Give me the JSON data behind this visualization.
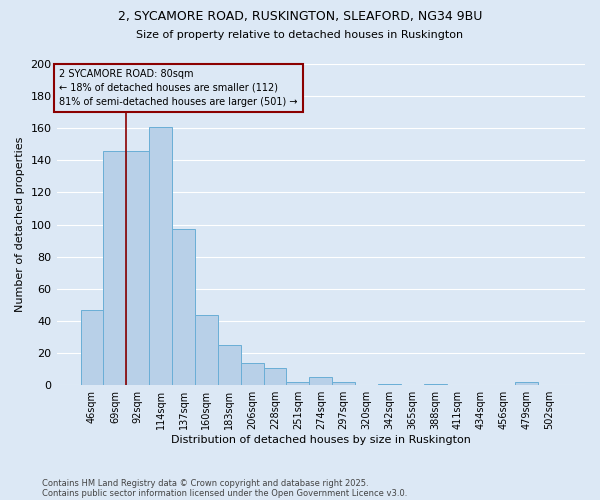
{
  "title_line1": "2, SYCAMORE ROAD, RUSKINGTON, SLEAFORD, NG34 9BU",
  "title_line2": "Size of property relative to detached houses in Ruskington",
  "xlabel": "Distribution of detached houses by size in Ruskington",
  "ylabel": "Number of detached properties",
  "categories": [
    "46sqm",
    "69sqm",
    "92sqm",
    "114sqm",
    "137sqm",
    "160sqm",
    "183sqm",
    "206sqm",
    "228sqm",
    "251sqm",
    "274sqm",
    "297sqm",
    "320sqm",
    "342sqm",
    "365sqm",
    "388sqm",
    "411sqm",
    "434sqm",
    "456sqm",
    "479sqm",
    "502sqm"
  ],
  "values": [
    47,
    146,
    146,
    161,
    97,
    44,
    25,
    14,
    11,
    2,
    5,
    2,
    0,
    1,
    0,
    1,
    0,
    0,
    0,
    2,
    0
  ],
  "bar_color": "#b8d0e8",
  "bar_edge_color": "#6aaed6",
  "bg_color": "#dce8f5",
  "grid_color": "#ffffff",
  "vline_color": "#8b0000",
  "vline_x_index": 1.5,
  "annotation_text": "2 SYCAMORE ROAD: 80sqm\n← 18% of detached houses are smaller (112)\n81% of semi-detached houses are larger (501) →",
  "annotation_box_edge_color": "#8b0000",
  "footnote_line1": "Contains HM Land Registry data © Crown copyright and database right 2025.",
  "footnote_line2": "Contains public sector information licensed under the Open Government Licence v3.0.",
  "ylim": [
    0,
    200
  ],
  "yticks": [
    0,
    20,
    40,
    60,
    80,
    100,
    120,
    140,
    160,
    180,
    200
  ]
}
